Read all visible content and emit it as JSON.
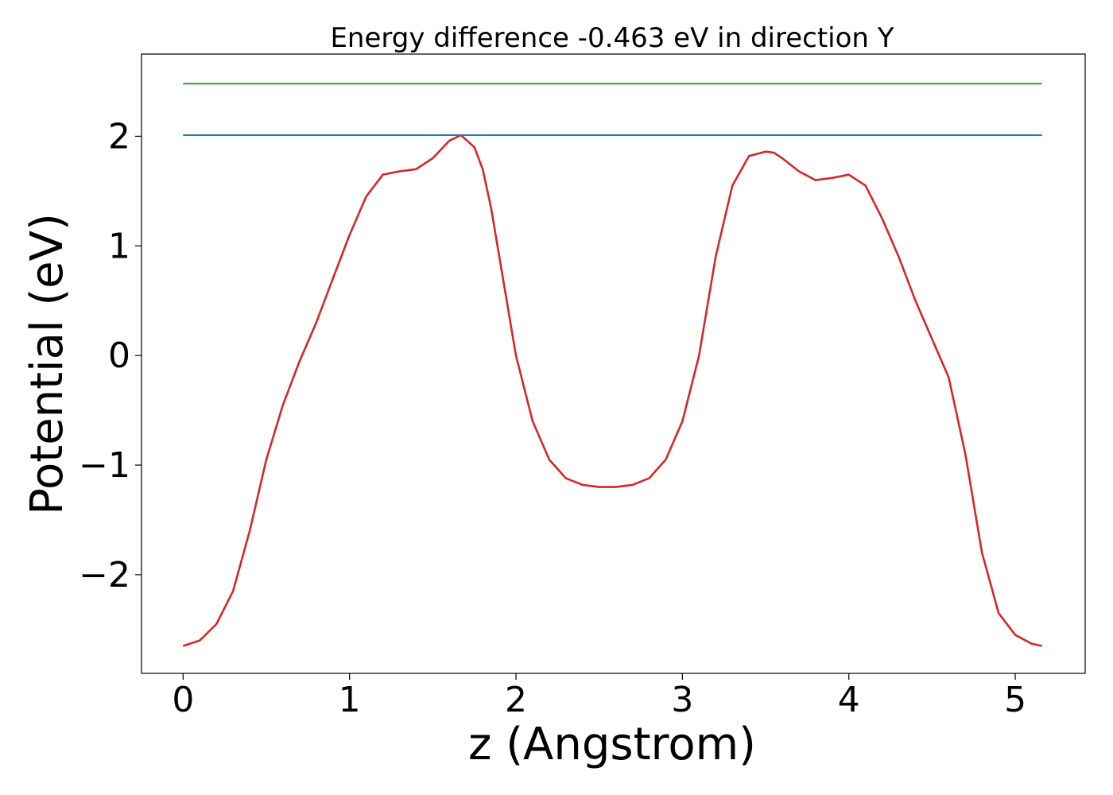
{
  "chart_data": {
    "type": "line",
    "title": "Energy difference -0.463 eV in direction Y",
    "xlabel": "z (Angstrom)",
    "ylabel": "Potential (eV)",
    "xlim": [
      -0.25,
      5.42
    ],
    "ylim": [
      -2.9,
      2.75
    ],
    "xticks": [
      0,
      1,
      2,
      3,
      4,
      5
    ],
    "xtick_labels": [
      "0",
      "1",
      "2",
      "3",
      "4",
      "5"
    ],
    "yticks": [
      -2,
      -1,
      0,
      1,
      2
    ],
    "ytick_labels": [
      "−2",
      "−1",
      "0",
      "1",
      "2"
    ],
    "grid": false,
    "legend": "none",
    "series": [
      {
        "color": "#d62728",
        "x": [
          0,
          0.1,
          0.2,
          0.3,
          0.4,
          0.5,
          0.6,
          0.7,
          0.8,
          0.9,
          1.0,
          1.1,
          1.2,
          1.3,
          1.4,
          1.5,
          1.6,
          1.67,
          1.75,
          1.8,
          1.85,
          1.9,
          2.0,
          2.1,
          2.2,
          2.3,
          2.4,
          2.5,
          2.6,
          2.7,
          2.8,
          2.9,
          3.0,
          3.1,
          3.2,
          3.3,
          3.4,
          3.5,
          3.55,
          3.6,
          3.7,
          3.8,
          3.9,
          4.0,
          4.1,
          4.2,
          4.3,
          4.4,
          4.5,
          4.6,
          4.7,
          4.8,
          4.9,
          5.0,
          5.1,
          5.16
        ],
        "y": [
          -2.65,
          -2.6,
          -2.45,
          -2.15,
          -1.6,
          -0.95,
          -0.45,
          -0.05,
          0.3,
          0.7,
          1.1,
          1.45,
          1.65,
          1.68,
          1.7,
          1.8,
          1.96,
          2.01,
          1.9,
          1.7,
          1.35,
          0.9,
          0.0,
          -0.6,
          -0.95,
          -1.12,
          -1.18,
          -1.2,
          -1.2,
          -1.18,
          -1.12,
          -0.95,
          -0.6,
          0.0,
          0.9,
          1.55,
          1.82,
          1.86,
          1.85,
          1.8,
          1.68,
          1.6,
          1.62,
          1.65,
          1.55,
          1.25,
          0.9,
          0.5,
          0.15,
          -0.2,
          -0.9,
          -1.8,
          -2.35,
          -2.55,
          -2.63,
          -2.65
        ]
      },
      {
        "color": "#1f77b4",
        "x": [
          0,
          5.16
        ],
        "y": [
          2.01,
          2.01
        ]
      },
      {
        "color": "#2ca02c",
        "x": [
          0,
          5.16
        ],
        "y": [
          2.48,
          2.48
        ]
      }
    ]
  }
}
